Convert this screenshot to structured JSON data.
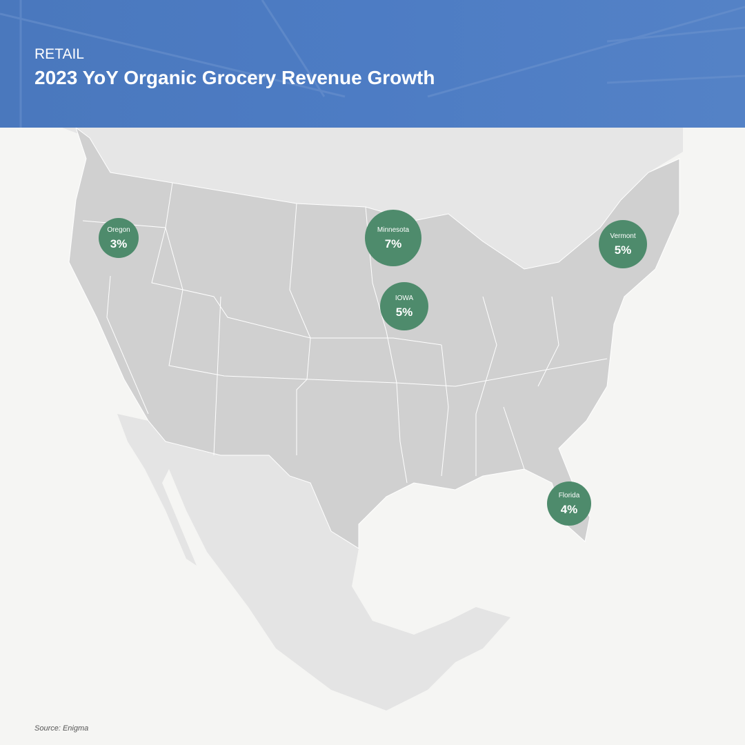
{
  "header": {
    "category": "RETAIL",
    "title": "2023 YoY Organic Grocery Revenue Growth"
  },
  "markers": [
    {
      "label": "Oregon",
      "value": 3,
      "value_label": "3%"
    },
    {
      "label": "Minnesota",
      "value": 7,
      "value_label": "7%"
    },
    {
      "label": "IOWA",
      "value": 5,
      "value_label": "5%"
    },
    {
      "label": "Vermont",
      "value": 5,
      "value_label": "5%"
    },
    {
      "label": "Florida",
      "value": 4,
      "value_label": "4%"
    }
  ],
  "source": "Source: Enigma"
}
